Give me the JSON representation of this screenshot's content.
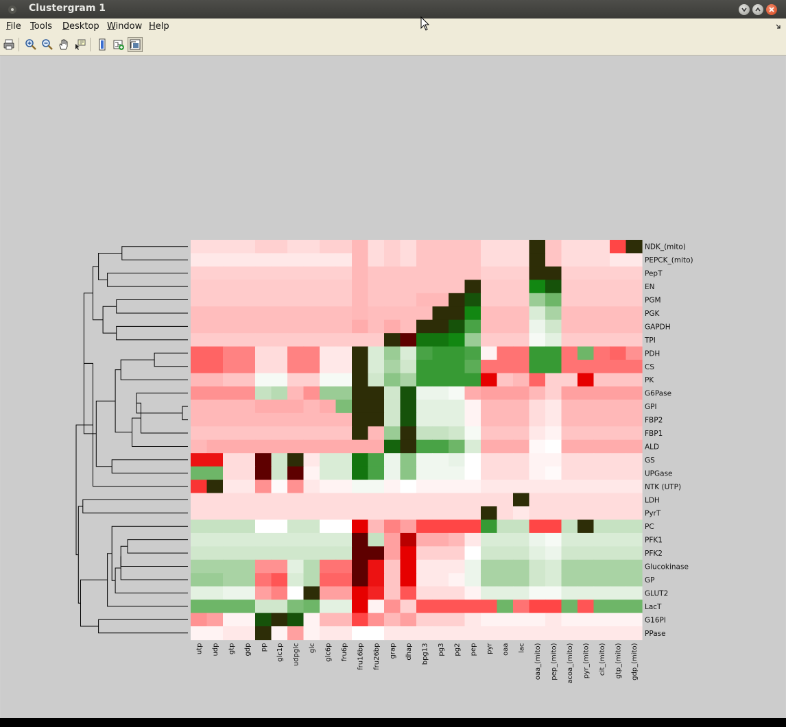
{
  "window": {
    "title": "Clustergram 1",
    "menus": [
      {
        "label": "File",
        "mnemonic": "F"
      },
      {
        "label": "Tools",
        "mnemonic": "T"
      },
      {
        "label": "Desktop",
        "mnemonic": "D"
      },
      {
        "label": "Window",
        "mnemonic": "W"
      },
      {
        "label": "Help",
        "mnemonic": "H"
      }
    ],
    "toolbar": [
      {
        "icon": "print-icon"
      },
      {
        "icon": "zoom-in-icon"
      },
      {
        "icon": "zoom-out-icon"
      },
      {
        "icon": "pan-icon"
      },
      {
        "icon": "data-cursor-icon"
      },
      {
        "icon": "colorbar-icon"
      },
      {
        "icon": "insert-dendrogram-icon"
      },
      {
        "icon": "show-dendrogram-icon",
        "pressed": true
      }
    ]
  },
  "clustergram": {
    "colormap": "red-green",
    "columns": [
      "utp",
      "udp",
      "gtp",
      "gdp",
      "pp",
      "glc1p",
      "udpglc",
      "glc",
      "glc6p",
      "fru6p",
      "fru16bp",
      "fru26bp",
      "grap",
      "dhap",
      "bpg13",
      "pg3",
      "pg2",
      "pep",
      "pyr",
      "oaa",
      "lac",
      "oaa_(mito)",
      "pep_(mito)",
      "acoa_(mito)",
      "pyr_(mito)",
      "cit_(mito)",
      "gtp_(mito)",
      "gdp_(mito)"
    ],
    "rows": [
      "NDK_(mito)",
      "PEPCK_(mito)",
      "PepT",
      "EN",
      "PGM",
      "PGK",
      "GAPDH",
      "TPI",
      "PDH",
      "CS",
      "PK",
      "G6Pase",
      "GPI",
      "FBP2",
      "FBP1",
      "ALD",
      "GS",
      "UPGase",
      "NTK (UTP)",
      "LDH",
      "PyrT",
      "PC",
      "PFK1",
      "PFK2",
      "Glucokinase",
      "GP",
      "GLUT2",
      "LacT",
      "G16PI",
      "PPase"
    ],
    "values": [
      [
        -0.15,
        -0.15,
        -0.15,
        -0.15,
        -0.2,
        -0.2,
        -0.15,
        -0.15,
        -0.2,
        -0.2,
        -0.3,
        -0.15,
        -0.2,
        -0.15,
        -0.25,
        -0.25,
        -0.25,
        -0.25,
        -0.15,
        -0.15,
        -0.15,
        9,
        -0.25,
        -0.15,
        -0.15,
        -0.15,
        -0.7,
        9
      ],
      [
        -0.1,
        -0.1,
        -0.1,
        -0.1,
        -0.1,
        -0.1,
        -0.1,
        -0.1,
        -0.1,
        -0.1,
        -0.3,
        -0.15,
        -0.2,
        -0.15,
        -0.25,
        -0.25,
        -0.25,
        -0.25,
        -0.15,
        -0.15,
        -0.15,
        9,
        -0.25,
        -0.15,
        -0.15,
        -0.15,
        -0.1,
        -0.1
      ],
      [
        -0.2,
        -0.2,
        -0.2,
        -0.2,
        -0.2,
        -0.2,
        -0.2,
        -0.2,
        -0.2,
        -0.2,
        -0.3,
        -0.25,
        -0.25,
        -0.25,
        -0.25,
        -0.25,
        -0.25,
        -0.25,
        -0.2,
        -0.2,
        -0.2,
        9,
        9,
        -0.2,
        -0.2,
        -0.2,
        -0.2,
        -0.2
      ],
      [
        -0.22,
        -0.22,
        -0.22,
        -0.22,
        -0.22,
        -0.22,
        -0.22,
        -0.22,
        -0.22,
        -0.22,
        -0.3,
        -0.25,
        -0.25,
        -0.25,
        -0.25,
        -0.25,
        -0.25,
        9,
        -0.22,
        -0.22,
        -0.22,
        0.85,
        1.0,
        -0.22,
        -0.22,
        -0.22,
        -0.22,
        -0.22
      ],
      [
        -0.22,
        -0.22,
        -0.22,
        -0.22,
        -0.22,
        -0.22,
        -0.22,
        -0.22,
        -0.22,
        -0.22,
        -0.3,
        -0.25,
        -0.25,
        -0.25,
        -0.3,
        -0.3,
        9,
        1.0,
        -0.22,
        -0.22,
        -0.22,
        0.45,
        0.6,
        -0.22,
        -0.22,
        -0.22,
        -0.22,
        -0.22
      ],
      [
        -0.28,
        -0.28,
        -0.28,
        -0.28,
        -0.28,
        -0.28,
        -0.28,
        -0.28,
        -0.28,
        -0.28,
        -0.3,
        -0.28,
        -0.28,
        -0.28,
        -0.28,
        9,
        9,
        0.85,
        -0.28,
        -0.28,
        -0.28,
        0.2,
        0.4,
        -0.28,
        -0.28,
        -0.28,
        -0.28,
        -0.28
      ],
      [
        -0.28,
        -0.28,
        -0.28,
        -0.28,
        -0.28,
        -0.28,
        -0.28,
        -0.28,
        -0.28,
        -0.28,
        -0.35,
        -0.28,
        -0.35,
        -0.28,
        9,
        9,
        1.0,
        0.7,
        -0.28,
        -0.28,
        -0.28,
        0.1,
        0.25,
        -0.28,
        -0.28,
        -0.28,
        -0.28,
        -0.28
      ],
      [
        -0.22,
        -0.22,
        -0.22,
        -0.22,
        -0.22,
        -0.22,
        -0.22,
        -0.22,
        -0.22,
        -0.22,
        -0.22,
        -0.22,
        9,
        -9,
        0.9,
        0.9,
        0.85,
        0.45,
        -0.22,
        -0.22,
        -0.22,
        0.05,
        0.15,
        -0.22,
        -0.22,
        -0.22,
        -0.22,
        -0.22
      ],
      [
        -0.6,
        -0.6,
        -0.5,
        -0.5,
        -0.15,
        -0.15,
        -0.5,
        -0.5,
        -0.1,
        -0.1,
        9,
        0.2,
        0.45,
        0.2,
        0.7,
        0.75,
        0.75,
        0.7,
        -0.05,
        -0.55,
        -0.55,
        0.75,
        0.75,
        -0.55,
        0.6,
        -0.55,
        -0.6,
        -0.45
      ],
      [
        -0.6,
        -0.6,
        -0.5,
        -0.5,
        -0.15,
        -0.15,
        -0.5,
        -0.5,
        -0.1,
        -0.1,
        9,
        0.2,
        0.4,
        0.25,
        0.75,
        0.75,
        0.75,
        0.65,
        -0.55,
        -0.55,
        -0.55,
        0.75,
        0.75,
        -0.55,
        -0.55,
        -0.55,
        -0.55,
        -0.55
      ],
      [
        -0.3,
        -0.3,
        -0.25,
        -0.25,
        0.05,
        0.05,
        -0.2,
        -0.2,
        0.05,
        0.05,
        9,
        0.25,
        0.5,
        0.4,
        0.75,
        0.75,
        0.75,
        0.75,
        -0.9,
        -0.25,
        -0.3,
        -0.6,
        -0.2,
        -0.2,
        -0.9,
        -0.25,
        -0.25,
        -0.25
      ],
      [
        -0.45,
        -0.45,
        -0.45,
        -0.45,
        0.3,
        0.35,
        -0.3,
        -0.45,
        0.45,
        0.45,
        9,
        9,
        0.25,
        1.0,
        0.1,
        0.1,
        0.05,
        -0.35,
        -0.4,
        -0.4,
        -0.4,
        -0.3,
        -0.2,
        -0.4,
        -0.4,
        -0.4,
        -0.4,
        -0.4
      ],
      [
        -0.3,
        -0.3,
        -0.3,
        -0.3,
        -0.35,
        -0.35,
        -0.35,
        -0.3,
        -0.35,
        0.55,
        9,
        9,
        0.25,
        1.0,
        0.15,
        0.15,
        0.15,
        -0.05,
        -0.3,
        -0.3,
        -0.3,
        -0.15,
        -0.1,
        -0.3,
        -0.3,
        -0.3,
        -0.3,
        -0.3
      ],
      [
        -0.3,
        -0.3,
        -0.3,
        -0.3,
        -0.3,
        -0.3,
        -0.3,
        -0.3,
        -0.3,
        -0.3,
        9,
        9,
        0.25,
        1.0,
        0.15,
        0.15,
        0.15,
        -0.05,
        -0.3,
        -0.3,
        -0.3,
        -0.15,
        -0.1,
        -0.3,
        -0.3,
        -0.3,
        -0.3,
        -0.3
      ],
      [
        -0.25,
        -0.25,
        -0.25,
        -0.25,
        -0.25,
        -0.25,
        -0.25,
        -0.25,
        -0.25,
        -0.25,
        9,
        -0.3,
        0.45,
        9,
        0.3,
        0.3,
        0.25,
        0.05,
        -0.25,
        -0.25,
        -0.25,
        -0.1,
        -0.05,
        -0.25,
        -0.25,
        -0.25,
        -0.25,
        -0.25
      ],
      [
        -0.3,
        -0.35,
        -0.35,
        -0.35,
        -0.35,
        -0.35,
        -0.35,
        -0.35,
        -0.35,
        -0.35,
        -0.35,
        -0.35,
        0.95,
        9,
        0.7,
        0.7,
        0.6,
        0.2,
        -0.35,
        -0.35,
        -0.35,
        -0.03,
        0.0,
        -0.35,
        -0.35,
        -0.35,
        -0.35,
        -0.35
      ],
      [
        -0.85,
        -0.85,
        -0.15,
        -0.15,
        -9,
        0.25,
        9,
        -0.1,
        0.2,
        0.2,
        0.9,
        0.7,
        0.1,
        0.5,
        0.08,
        0.08,
        0.12,
        0.0,
        -0.15,
        -0.15,
        -0.15,
        -0.05,
        -0.05,
        -0.15,
        -0.15,
        -0.15,
        -0.15,
        -0.15
      ],
      [
        0.6,
        0.6,
        -0.15,
        -0.15,
        -9,
        0.25,
        -9,
        -0.05,
        0.2,
        0.2,
        0.9,
        0.7,
        0.1,
        0.5,
        0.08,
        0.08,
        0.08,
        0.0,
        -0.15,
        -0.15,
        -0.15,
        -0.05,
        -0.02,
        -0.15,
        -0.15,
        -0.15,
        -0.15,
        -0.15
      ],
      [
        -0.75,
        9,
        -0.1,
        -0.1,
        -0.45,
        -0.02,
        -0.45,
        -0.1,
        -0.05,
        -0.05,
        0.06,
        0.06,
        -0.05,
        0.0,
        -0.05,
        -0.05,
        -0.05,
        -0.05,
        -0.1,
        -0.1,
        -0.1,
        -0.1,
        -0.1,
        -0.1,
        -0.1,
        -0.1,
        -0.1,
        -0.1
      ],
      [
        -0.15,
        -0.15,
        -0.15,
        -0.15,
        -0.15,
        -0.15,
        -0.15,
        -0.15,
        -0.15,
        -0.15,
        -0.15,
        -0.15,
        -0.15,
        -0.15,
        -0.15,
        -0.15,
        -0.15,
        -0.15,
        -0.15,
        -0.15,
        9,
        -0.15,
        -0.15,
        -0.15,
        -0.15,
        -0.15,
        -0.15,
        -0.15
      ],
      [
        -0.15,
        -0.15,
        -0.15,
        -0.15,
        -0.15,
        -0.15,
        -0.15,
        -0.15,
        -0.15,
        -0.15,
        -0.15,
        -0.15,
        -0.15,
        -0.15,
        -0.15,
        -0.15,
        -0.15,
        -0.15,
        9,
        -0.15,
        -0.1,
        -0.15,
        -0.15,
        -0.15,
        -0.15,
        -0.15,
        -0.15,
        -0.15
      ],
      [
        0.3,
        0.3,
        0.3,
        0.3,
        0.0,
        0.0,
        0.25,
        0.25,
        0.0,
        0.0,
        -0.9,
        -0.3,
        -0.5,
        -0.4,
        -0.7,
        -0.7,
        -0.7,
        -0.7,
        0.75,
        0.3,
        0.3,
        -0.7,
        -0.7,
        0.3,
        9,
        0.3,
        0.3,
        0.3
      ],
      [
        0.2,
        0.2,
        0.2,
        0.2,
        0.2,
        0.2,
        0.2,
        0.2,
        0.2,
        0.2,
        -9,
        0.3,
        -0.4,
        -0.95,
        -0.35,
        -0.35,
        -0.3,
        -0.1,
        0.2,
        0.2,
        0.2,
        0.1,
        0.05,
        0.2,
        0.2,
        0.2,
        0.2,
        0.2
      ],
      [
        0.25,
        0.25,
        0.25,
        0.25,
        0.25,
        0.25,
        0.25,
        0.25,
        0.25,
        0.25,
        -9,
        -9,
        -0.4,
        -0.9,
        -0.2,
        -0.2,
        -0.2,
        0.0,
        0.25,
        0.25,
        0.25,
        0.15,
        0.1,
        0.25,
        0.25,
        0.25,
        0.25,
        0.25
      ],
      [
        0.4,
        0.4,
        0.4,
        0.4,
        -0.45,
        -0.45,
        0.15,
        0.35,
        -0.55,
        -0.55,
        -9,
        -0.85,
        -0.25,
        -0.9,
        -0.1,
        -0.1,
        -0.1,
        0.1,
        0.4,
        0.4,
        0.4,
        0.25,
        0.2,
        0.4,
        0.4,
        0.4,
        0.4,
        0.4
      ],
      [
        0.45,
        0.45,
        0.4,
        0.4,
        -0.55,
        -0.65,
        0.2,
        0.35,
        -0.6,
        -0.6,
        -9,
        -0.85,
        -0.25,
        -0.9,
        -0.1,
        -0.1,
        -0.05,
        0.1,
        0.4,
        0.4,
        0.4,
        0.25,
        0.2,
        0.4,
        0.4,
        0.4,
        0.4,
        0.4
      ],
      [
        0.15,
        0.15,
        0.1,
        0.1,
        -0.4,
        -0.5,
        0.0,
        9,
        -0.4,
        -0.4,
        -0.9,
        -0.8,
        -0.25,
        -0.65,
        -0.15,
        -0.15,
        -0.15,
        -0.05,
        0.15,
        0.15,
        0.15,
        0.05,
        0.05,
        0.15,
        0.15,
        0.15,
        0.15,
        0.15
      ],
      [
        0.6,
        0.6,
        0.6,
        0.6,
        0.25,
        0.25,
        0.55,
        0.6,
        0.15,
        0.15,
        -0.9,
        -0.05,
        -0.45,
        -0.2,
        -0.65,
        -0.65,
        -0.65,
        -0.65,
        -0.65,
        0.6,
        -0.55,
        -0.7,
        -0.7,
        0.6,
        -0.65,
        0.6,
        0.6,
        0.6
      ],
      [
        -0.45,
        -0.4,
        -0.05,
        -0.05,
        1.0,
        9,
        1.0,
        -0.05,
        -0.3,
        -0.3,
        -0.7,
        -0.45,
        -0.3,
        -0.4,
        -0.2,
        -0.2,
        -0.2,
        -0.1,
        -0.05,
        -0.05,
        -0.05,
        -0.05,
        -0.1,
        -0.05,
        -0.05,
        -0.05,
        -0.05,
        -0.05
      ],
      [
        -0.05,
        -0.05,
        -0.1,
        -0.1,
        9,
        -0.05,
        -0.4,
        -0.05,
        -0.1,
        -0.1,
        0.0,
        0.0,
        -0.1,
        -0.1,
        -0.1,
        -0.1,
        -0.1,
        -0.1,
        -0.1,
        -0.1,
        -0.1,
        -0.1,
        -0.1,
        -0.1,
        -0.1,
        -0.1,
        -0.1,
        -0.1
      ]
    ],
    "row_dendrogram": [
      [
        0,
        1,
        0.59
      ],
      [
        2,
        3,
        0.72
      ],
      [
        30,
        31,
        0.8
      ],
      [
        4,
        5,
        0.64
      ],
      [
        6,
        7,
        0.64
      ],
      [
        33,
        34,
        0.76
      ],
      [
        32,
        35,
        0.85
      ],
      [
        8,
        9,
        0.3
      ],
      [
        37,
        10,
        0.6
      ],
      [
        12,
        13,
        0.05
      ],
      [
        39,
        11,
        0.46
      ],
      [
        40,
        14,
        0.42
      ],
      [
        41,
        15,
        0.5
      ],
      [
        38,
        42,
        0.65
      ],
      [
        16,
        17,
        0.68
      ],
      [
        43,
        44,
        0.82
      ],
      [
        36,
        45,
        0.93
      ],
      [
        46,
        18,
        0.85
      ],
      [
        19,
        20,
        0.94
      ],
      [
        22,
        23,
        0.54
      ],
      [
        49,
        24,
        0.6
      ],
      [
        50,
        25,
        0.6
      ],
      [
        51,
        26,
        0.65
      ],
      [
        52,
        21,
        0.68
      ],
      [
        53,
        27,
        0.72
      ],
      [
        28,
        29,
        0.8
      ],
      [
        54,
        55,
        0.96
      ],
      [
        48,
        56,
        0.98
      ],
      [
        47,
        57,
        1.0
      ]
    ]
  }
}
